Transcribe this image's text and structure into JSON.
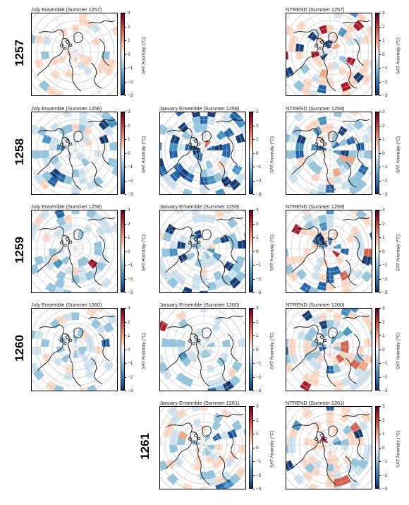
{
  "colorbar": {
    "label": "SAT Anomaly (°C)",
    "ticks": [
      "3",
      "2",
      "1",
      "0",
      "−1",
      "−2",
      "−3"
    ]
  },
  "colors": {
    "cold": "#2166ac",
    "warm": "#b2182b",
    "neutral": "#f7f7f7"
  },
  "rows": [
    {
      "year": "1257",
      "panels": [
        {
          "col": 0,
          "title": "July Ensemble (Summer 1257)",
          "pattern": "p1"
        },
        {
          "col": 2,
          "title": "NTREND (Summer 1257)",
          "pattern": "p2"
        }
      ]
    },
    {
      "year": "1258",
      "panels": [
        {
          "col": 0,
          "title": "July Ensemble (Summer 1258)",
          "pattern": "p3"
        },
        {
          "col": 1,
          "title": "January Ensemble (Summer 1258)",
          "pattern": "p4"
        },
        {
          "col": 2,
          "title": "NTREND (Summer 1258)",
          "pattern": "p5"
        }
      ]
    },
    {
      "year": "1259",
      "panels": [
        {
          "col": 0,
          "title": "July Ensemble (Summer 1259)",
          "pattern": "p6"
        },
        {
          "col": 1,
          "title": "January Ensemble (Summer 1259)",
          "pattern": "p7"
        },
        {
          "col": 2,
          "title": "NTREND (Summer 1259)",
          "pattern": "p8"
        }
      ]
    },
    {
      "year": "1260",
      "panels": [
        {
          "col": 0,
          "title": "July Ensemble (Summer 1260)",
          "pattern": "p9"
        },
        {
          "col": 1,
          "title": "January Ensemble (Summer 1260)",
          "pattern": "p10"
        },
        {
          "col": 2,
          "title": "NTREND (Summer 1260)",
          "pattern": "p11"
        }
      ]
    },
    {
      "year": "1261",
      "panels": [
        {
          "col": 1,
          "title": "January Ensemble (Summer 1261)",
          "pattern": "p12"
        },
        {
          "col": 2,
          "title": "NTREND (Summer 1261)",
          "pattern": "p13"
        }
      ]
    }
  ]
}
